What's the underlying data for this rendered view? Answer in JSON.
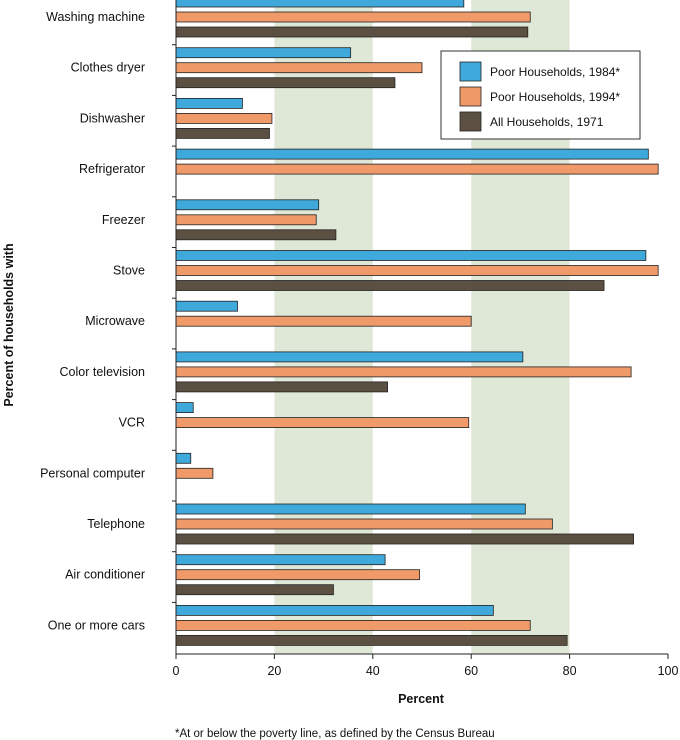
{
  "chart_data": {
    "type": "bar",
    "orientation": "horizontal",
    "categories": [
      "Washing machine",
      "Clothes dryer",
      "Dishwasher",
      "Refrigerator",
      "Freezer",
      "Stove",
      "Microwave",
      "Color television",
      "VCR",
      "Personal computer",
      "Telephone",
      "Air conditioner",
      "One or more cars"
    ],
    "series": [
      {
        "name": "Poor Households, 1984*",
        "color": "#3fa9dc",
        "values": [
          58.5,
          35.5,
          13.5,
          96,
          29,
          95.5,
          12.5,
          70.5,
          3.5,
          3,
          71,
          42.5,
          64.5
        ]
      },
      {
        "name": "Poor Households, 1994*",
        "color": "#f09a6a",
        "values": [
          72,
          50,
          19.5,
          98,
          28.5,
          98,
          60,
          92.5,
          59.5,
          7.5,
          76.5,
          49.5,
          72
        ]
      },
      {
        "name": "All Households, 1971",
        "color": "#5c5042",
        "values": [
          71.5,
          44.5,
          19,
          null,
          32.5,
          87,
          null,
          43,
          null,
          null,
          93,
          32,
          79.5
        ]
      }
    ],
    "xlabel": "Percent",
    "ylabel": "Percent of households with",
    "xlim": [
      0,
      100
    ],
    "xticks": [
      "0",
      "20",
      "40",
      "60",
      "80",
      "100"
    ],
    "background_bands": "alternating light green every 20",
    "legend_position": "top-right",
    "footnote": "*At or below the poverty line, as defined by the Census Bureau"
  }
}
